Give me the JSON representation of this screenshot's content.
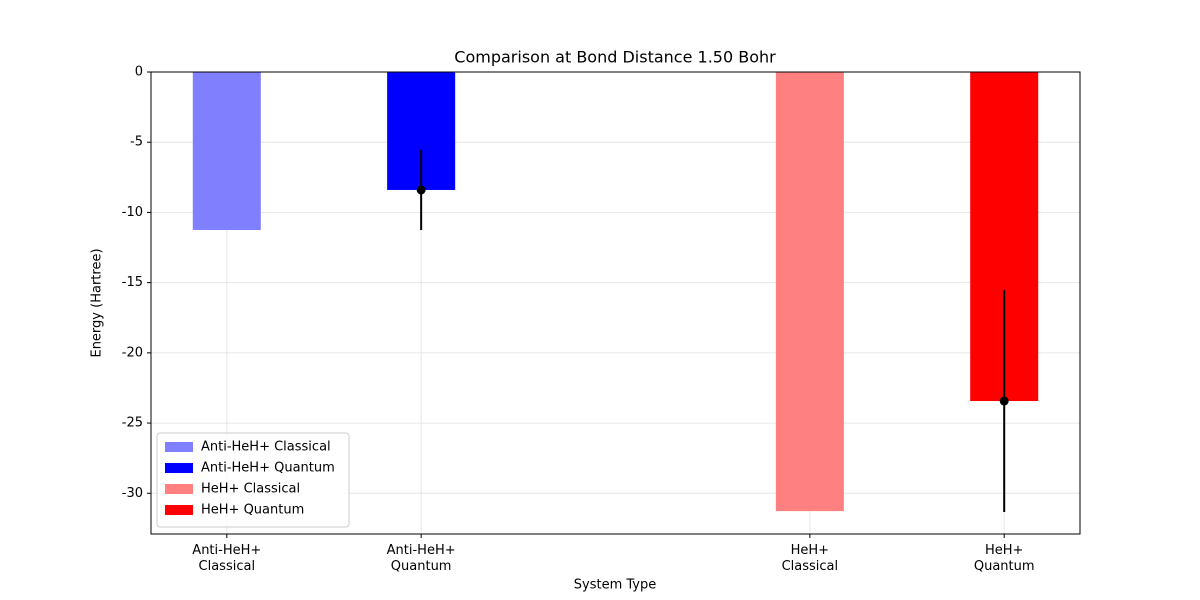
{
  "chart_data": {
    "type": "bar",
    "title": "Comparison at Bond Distance 1.50 Bohr",
    "x_label": "System Type",
    "y_label": "Energy (Hartree)",
    "categories": [
      "Anti-HeH+\nClassical",
      "Anti-HeH+\nQuantum",
      "HeH+\nClassical",
      "HeH+\nQuantum"
    ],
    "x": [
      0,
      1,
      3,
      4
    ],
    "xlim": [
      -0.39,
      4.39
    ],
    "series": [
      {
        "name": "Anti-HeH+ Classical",
        "color": "#8080ff",
        "values": [
          -11.25,
          null,
          null,
          null
        ],
        "errors": [
          null,
          null,
          null,
          null
        ]
      },
      {
        "name": "Anti-HeH+ Quantum",
        "color": "#0000ff",
        "values": [
          null,
          -8.4,
          null,
          null
        ],
        "errors": [
          null,
          2.85,
          null,
          null
        ]
      },
      {
        "name": "HeH+ Classical",
        "color": "#ff8080",
        "values": [
          null,
          null,
          -31.27,
          null
        ],
        "errors": [
          null,
          null,
          null,
          null
        ]
      },
      {
        "name": "HeH+ Quantum",
        "color": "#ff0000",
        "values": [
          null,
          null,
          null,
          -23.43
        ],
        "errors": [
          null,
          null,
          null,
          7.9
        ]
      }
    ],
    "ylim": [
      -32.9,
      0
    ],
    "yticks": [
      0,
      -5,
      -10,
      -15,
      -20,
      -25,
      -30
    ],
    "grid": true,
    "legend": "lower left"
  }
}
